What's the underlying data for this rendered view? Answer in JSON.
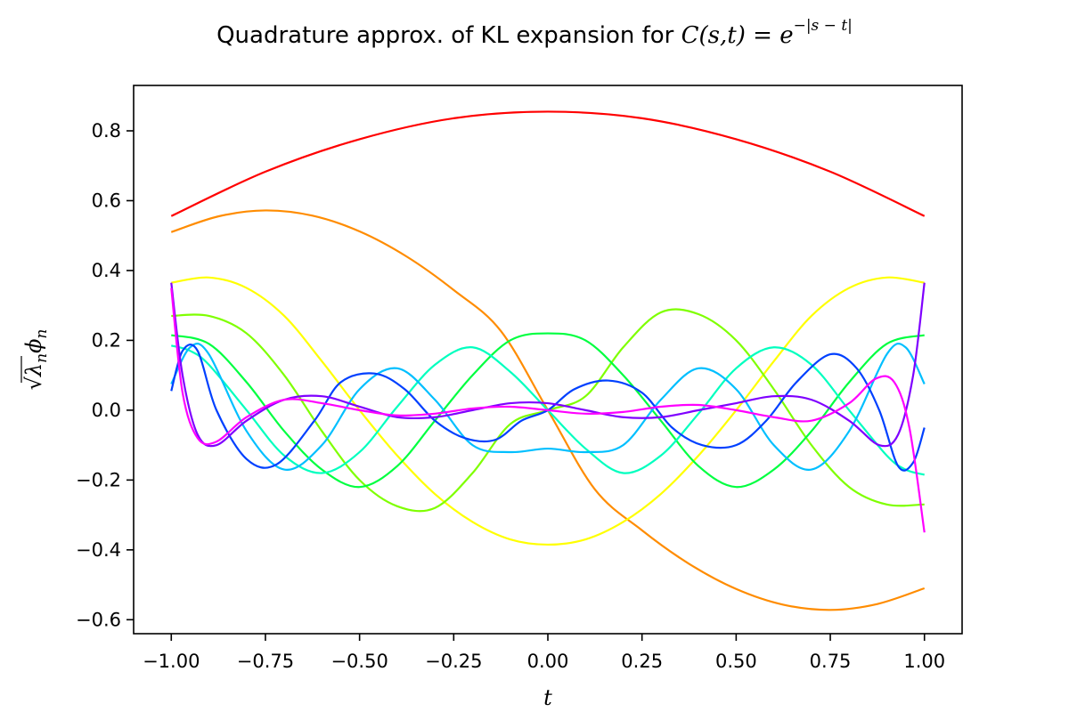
{
  "chart_data": {
    "type": "line",
    "title_prefix": "Quadrature approx. of KL expansion for ",
    "title_math": "C(s,t) = e",
    "title_exponent": "−|s − t|",
    "xlabel": "t",
    "ylabel_sqrt_arg": "λ",
    "ylabel_sub_n": "n",
    "ylabel_phi": "ϕ",
    "ylabel_phi_sub": "n",
    "xlim": [
      -1.1,
      1.1
    ],
    "ylim": [
      -0.64,
      0.93
    ],
    "x_ticks": [
      -1.0,
      -0.75,
      -0.5,
      -0.25,
      0.0,
      0.25,
      0.5,
      0.75,
      1.0
    ],
    "x_tick_labels": [
      "−1.00",
      "−0.75",
      "−0.50",
      "−0.25",
      "0.00",
      "0.25",
      "0.50",
      "0.75",
      "1.00"
    ],
    "y_ticks": [
      -0.6,
      -0.4,
      -0.2,
      0.0,
      0.2,
      0.4,
      0.6,
      0.8
    ],
    "y_tick_labels": [
      "−0.6",
      "−0.4",
      "−0.2",
      "0.0",
      "0.2",
      "0.4",
      "0.6",
      "0.8"
    ],
    "grid": false,
    "legend": "none",
    "series": [
      {
        "color": "#ff0000",
        "x": [
          -1.0,
          -0.75,
          -0.5,
          -0.25,
          0.0,
          0.25,
          0.5,
          0.75,
          1.0
        ],
        "y": [
          0.556,
          0.683,
          0.776,
          0.836,
          0.855,
          0.836,
          0.776,
          0.683,
          0.556
        ]
      },
      {
        "color": "#ff8c00",
        "x": [
          -1.0,
          -0.875,
          -0.75,
          -0.625,
          -0.5,
          -0.375,
          -0.25,
          -0.125,
          0.0,
          0.125,
          0.25,
          0.375,
          0.5,
          0.625,
          0.75,
          0.875,
          1.0
        ],
        "y": [
          0.51,
          0.555,
          0.572,
          0.557,
          0.512,
          0.44,
          0.344,
          0.227,
          0.0,
          -0.227,
          -0.344,
          -0.44,
          -0.512,
          -0.557,
          -0.572,
          -0.555,
          -0.51
        ]
      },
      {
        "color": "#ffff00",
        "x": [
          -1.0,
          -0.9,
          -0.8,
          -0.7,
          -0.6,
          -0.5,
          -0.4,
          -0.3,
          -0.2,
          -0.1,
          0.0,
          0.1,
          0.2,
          0.3,
          0.4,
          0.5,
          0.6,
          0.7,
          0.8,
          0.9,
          1.0
        ],
        "y": [
          0.365,
          0.38,
          0.35,
          0.27,
          0.14,
          0.0,
          -0.13,
          -0.24,
          -0.32,
          -0.37,
          -0.385,
          -0.37,
          -0.32,
          -0.24,
          -0.13,
          0.0,
          0.14,
          0.27,
          0.35,
          0.38,
          0.365
        ]
      },
      {
        "color": "#7fff00",
        "x": [
          -1.0,
          -0.9,
          -0.8,
          -0.7,
          -0.6,
          -0.5,
          -0.4,
          -0.3,
          -0.2,
          -0.1,
          0.0,
          0.1,
          0.2,
          0.3,
          0.4,
          0.5,
          0.6,
          0.7,
          0.8,
          0.9,
          1.0
        ],
        "y": [
          0.27,
          0.27,
          0.22,
          0.1,
          -0.06,
          -0.2,
          -0.275,
          -0.28,
          -0.18,
          -0.04,
          0.0,
          0.04,
          0.18,
          0.28,
          0.275,
          0.2,
          0.06,
          -0.1,
          -0.22,
          -0.27,
          -0.27
        ]
      },
      {
        "color": "#00ff40",
        "x": [
          -1.0,
          -0.9,
          -0.8,
          -0.7,
          -0.6,
          -0.5,
          -0.4,
          -0.3,
          -0.2,
          -0.1,
          0.0,
          0.1,
          0.2,
          0.3,
          0.4,
          0.5,
          0.6,
          0.7,
          0.8,
          0.9,
          1.0
        ],
        "y": [
          0.215,
          0.19,
          0.08,
          -0.06,
          -0.17,
          -0.22,
          -0.16,
          -0.03,
          0.1,
          0.2,
          0.22,
          0.2,
          0.1,
          -0.03,
          -0.16,
          -0.22,
          -0.17,
          -0.06,
          0.08,
          0.19,
          0.215
        ]
      },
      {
        "color": "#00ffbf",
        "x": [
          -1.0,
          -0.95,
          -0.9,
          -0.8,
          -0.7,
          -0.6,
          -0.5,
          -0.4,
          -0.3,
          -0.2,
          -0.1,
          0.0,
          0.1,
          0.2,
          0.3,
          0.4,
          0.5,
          0.6,
          0.7,
          0.8,
          0.9,
          0.95,
          1.0
        ],
        "y": [
          0.185,
          0.17,
          0.13,
          0.0,
          -0.13,
          -0.18,
          -0.12,
          0.01,
          0.13,
          0.18,
          0.11,
          0.0,
          -0.11,
          -0.18,
          -0.13,
          -0.01,
          0.12,
          0.18,
          0.13,
          0.0,
          -0.13,
          -0.17,
          -0.185
        ]
      },
      {
        "color": "#00bfff",
        "x": [
          -1.0,
          -0.95,
          -0.9,
          -0.8,
          -0.7,
          -0.6,
          -0.5,
          -0.4,
          -0.3,
          -0.2,
          -0.1,
          0.0,
          0.1,
          0.2,
          0.3,
          0.4,
          0.5,
          0.6,
          0.7,
          0.8,
          0.9,
          0.95,
          1.0
        ],
        "y": [
          0.075,
          0.18,
          0.16,
          -0.06,
          -0.17,
          -0.1,
          0.06,
          0.12,
          0.03,
          -0.1,
          -0.12,
          -0.11,
          -0.12,
          -0.1,
          0.03,
          0.12,
          0.06,
          -0.1,
          -0.17,
          -0.06,
          0.16,
          0.18,
          0.075
        ]
      },
      {
        "color": "#0040ff",
        "x": [
          -1.0,
          -0.97,
          -0.93,
          -0.88,
          -0.8,
          -0.72,
          -0.62,
          -0.55,
          -0.46,
          -0.38,
          -0.3,
          -0.22,
          -0.14,
          -0.07,
          0.0,
          0.07,
          0.16,
          0.25,
          0.33,
          0.41,
          0.5,
          0.58,
          0.66,
          0.75,
          0.82,
          0.88,
          0.93,
          0.97,
          1.0
        ],
        "y": [
          0.055,
          0.17,
          0.17,
          0.0,
          -0.14,
          -0.155,
          -0.03,
          0.08,
          0.105,
          0.06,
          -0.03,
          -0.08,
          -0.085,
          -0.03,
          0.0,
          0.06,
          0.085,
          0.05,
          -0.05,
          -0.1,
          -0.1,
          -0.03,
          0.08,
          0.16,
          0.12,
          0.0,
          -0.16,
          -0.15,
          -0.05
        ]
      },
      {
        "color": "#7f00ff",
        "x": [
          -1.0,
          -0.97,
          -0.93,
          -0.88,
          -0.8,
          -0.7,
          -0.6,
          -0.5,
          -0.4,
          -0.3,
          -0.2,
          -0.1,
          0.0,
          0.1,
          0.2,
          0.3,
          0.4,
          0.5,
          0.6,
          0.7,
          0.8,
          0.88,
          0.93,
          0.97,
          1.0
        ],
        "y": [
          0.365,
          0.1,
          -0.07,
          -0.1,
          -0.03,
          0.03,
          0.04,
          0.01,
          -0.02,
          -0.02,
          0.0,
          0.02,
          0.02,
          0.0,
          -0.02,
          -0.02,
          0.0,
          0.02,
          0.04,
          0.03,
          -0.03,
          -0.1,
          -0.07,
          0.1,
          0.365
        ]
      },
      {
        "color": "#ff00ff",
        "x": [
          -1.0,
          -0.97,
          -0.93,
          -0.88,
          -0.8,
          -0.7,
          -0.6,
          -0.5,
          -0.4,
          -0.3,
          -0.2,
          -0.1,
          0.0,
          0.1,
          0.2,
          0.3,
          0.4,
          0.5,
          0.6,
          0.7,
          0.8,
          0.87,
          0.92,
          0.96,
          1.0
        ],
        "y": [
          0.35,
          0.05,
          -0.08,
          -0.09,
          -0.02,
          0.03,
          0.02,
          0.0,
          -0.015,
          -0.01,
          0.005,
          0.01,
          0.0,
          -0.01,
          -0.005,
          0.01,
          0.015,
          0.0,
          -0.02,
          -0.03,
          0.02,
          0.09,
          0.08,
          -0.05,
          -0.35
        ]
      }
    ]
  }
}
